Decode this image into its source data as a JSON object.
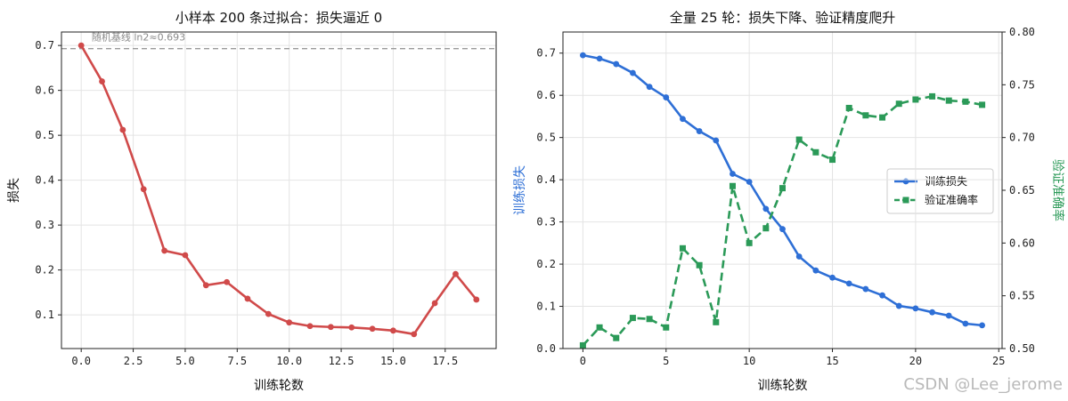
{
  "chart_data": [
    {
      "type": "line",
      "title": "小样本 200 条过拟合：损失逼近 0",
      "xlabel": "训练轮数",
      "ylabel": "损失",
      "xlim": [
        -0.95,
        19.95
      ],
      "ylim": [
        0.025,
        0.73
      ],
      "xticks": [
        0.0,
        2.5,
        5.0,
        7.5,
        10.0,
        12.5,
        15.0,
        17.5
      ],
      "xtick_labels": [
        "0.0",
        "2.5",
        "5.0",
        "7.5",
        "10.0",
        "12.5",
        "15.0",
        "17.5"
      ],
      "yticks": [
        0.1,
        0.2,
        0.3,
        0.4,
        0.5,
        0.6,
        0.7
      ],
      "ytick_labels": [
        "0.1",
        "0.2",
        "0.3",
        "0.4",
        "0.5",
        "0.6",
        "0.7"
      ],
      "grid": true,
      "baseline": {
        "value": 0.693,
        "label": "随机基线 ln2≈0.693",
        "color": "#9a9a9a"
      },
      "series": [
        {
          "color": "#d04a4a",
          "x": [
            0,
            1,
            2,
            3,
            4,
            5,
            6,
            7,
            8,
            9,
            10,
            11,
            12,
            13,
            14,
            15,
            16,
            17,
            18,
            19
          ],
          "values": [
            0.7,
            0.62,
            0.512,
            0.38,
            0.243,
            0.233,
            0.166,
            0.173,
            0.136,
            0.102,
            0.083,
            0.075,
            0.073,
            0.072,
            0.069,
            0.065,
            0.057,
            0.126,
            0.191,
            0.134
          ]
        }
      ]
    },
    {
      "type": "line",
      "title": "全量 25 轮：损失下降、验证精度爬升",
      "xlabel": "训练轮数",
      "ylabel": "训练损失",
      "y2label": "验证准确率",
      "xlim": [
        -1.2,
        25.2
      ],
      "ylim": [
        0.0,
        0.75
      ],
      "y2lim": [
        0.5,
        0.8
      ],
      "xticks": [
        0,
        5,
        10,
        15,
        20,
        25
      ],
      "xtick_labels": [
        "0",
        "5",
        "10",
        "15",
        "20",
        "25"
      ],
      "yticks": [
        0.0,
        0.1,
        0.2,
        0.3,
        0.4,
        0.5,
        0.6,
        0.7
      ],
      "ytick_labels": [
        "0.0",
        "0.1",
        "0.2",
        "0.3",
        "0.4",
        "0.5",
        "0.6",
        "0.7"
      ],
      "y2ticks": [
        0.5,
        0.55,
        0.6,
        0.65,
        0.7,
        0.75,
        0.8
      ],
      "y2tick_labels": [
        "0.50",
        "0.55",
        "0.60",
        "0.65",
        "0.70",
        "0.75",
        "0.80"
      ],
      "grid": true,
      "legend_position": "center-right",
      "series": [
        {
          "name": "训练损失",
          "axis": "left",
          "color": "#2e6fd6",
          "marker": "circle",
          "linestyle": "solid",
          "x": [
            0,
            1,
            2,
            3,
            4,
            5,
            6,
            7,
            8,
            9,
            10,
            11,
            12,
            13,
            14,
            15,
            16,
            17,
            18,
            19,
            20,
            21,
            22,
            23,
            24
          ],
          "values": [
            0.695,
            0.687,
            0.674,
            0.653,
            0.62,
            0.595,
            0.544,
            0.515,
            0.493,
            0.414,
            0.395,
            0.331,
            0.283,
            0.218,
            0.185,
            0.168,
            0.154,
            0.141,
            0.126,
            0.101,
            0.095,
            0.086,
            0.078,
            0.059,
            0.055
          ]
        },
        {
          "name": "验证准确率",
          "axis": "right",
          "color": "#2b9a58",
          "marker": "square",
          "linestyle": "dashed",
          "x": [
            0,
            1,
            2,
            3,
            4,
            5,
            6,
            7,
            8,
            9,
            10,
            11,
            12,
            13,
            14,
            15,
            16,
            17,
            18,
            19,
            20,
            21,
            22,
            23,
            24
          ],
          "values": [
            0.503,
            0.52,
            0.51,
            0.529,
            0.528,
            0.52,
            0.595,
            0.579,
            0.525,
            0.654,
            0.6,
            0.614,
            0.652,
            0.698,
            0.686,
            0.679,
            0.728,
            0.721,
            0.719,
            0.732,
            0.736,
            0.739,
            0.735,
            0.734,
            0.731
          ]
        }
      ]
    }
  ],
  "watermark": "CSDN @Lee_jerome"
}
